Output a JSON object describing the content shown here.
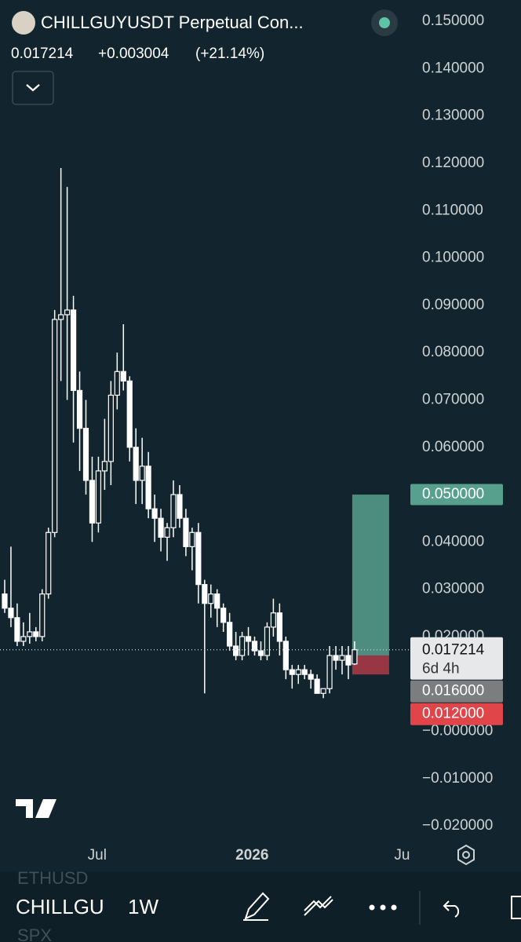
{
  "ui": {
    "symbol_title": "CHILLGUYUSDT Perpetual Con...",
    "last": "0.017214",
    "change": "+0.003004",
    "change_pct": "(+21.14%)",
    "toolbar": {
      "symbol_above": "ETHUSD",
      "symbol": "CHILLGU",
      "interval": "1W",
      "symbol_below": "SPX"
    }
  },
  "chart_data": {
    "type": "candlestick",
    "color_up": "#ffffff",
    "color_down": "#ffffff",
    "open": [
      0.029,
      0.026,
      0.024,
      0.019,
      0.02,
      0.021,
      0.02,
      0.029,
      0.042,
      0.087,
      0.088,
      0.089,
      0.072,
      0.064,
      0.053,
      0.044,
      0.055,
      0.057,
      0.071,
      0.076,
      0.074,
      0.06,
      0.053,
      0.056,
      0.047,
      0.045,
      0.041,
      0.043,
      0.05,
      0.045,
      0.039,
      0.042,
      0.031,
      0.027,
      0.029,
      0.026,
      0.023,
      0.018,
      0.016,
      0.02,
      0.019,
      0.017,
      0.016,
      0.022,
      0.025,
      0.019,
      0.013,
      0.012,
      0.013,
      0.012,
      0.011,
      0.008,
      0.009,
      0.016,
      0.015,
      0.016,
      0.014211
    ],
    "high": [
      0.032,
      0.039,
      0.027,
      0.023,
      0.025,
      0.022,
      0.03,
      0.043,
      0.089,
      0.119,
      0.115,
      0.092,
      0.076,
      0.07,
      0.058,
      0.058,
      0.066,
      0.074,
      0.08,
      0.086,
      0.075,
      0.064,
      0.062,
      0.059,
      0.05,
      0.047,
      0.044,
      0.053,
      0.052,
      0.047,
      0.043,
      0.044,
      0.032,
      0.031,
      0.03,
      0.027,
      0.025,
      0.021,
      0.021,
      0.022,
      0.02,
      0.019,
      0.023,
      0.028,
      0.027,
      0.02,
      0.014,
      0.014,
      0.014,
      0.013,
      0.012,
      0.009,
      0.018,
      0.018,
      0.018,
      0.018,
      0.019
    ],
    "low": [
      0.025,
      0.022,
      0.018,
      0.018,
      0.0185,
      0.019,
      0.019,
      0.028,
      0.041,
      0.074,
      0.07,
      0.061,
      0.055,
      0.05,
      0.04,
      0.042,
      0.051,
      0.052,
      0.068,
      0.072,
      0.057,
      0.048,
      0.048,
      0.045,
      0.04,
      0.038,
      0.036,
      0.041,
      0.043,
      0.037,
      0.034,
      0.027,
      0.008,
      0.024,
      0.022,
      0.021,
      0.017,
      0.015,
      0.015,
      0.016,
      0.016,
      0.015,
      0.015,
      0.02,
      0.016,
      0.011,
      0.009,
      0.01,
      0.011,
      0.009,
      0.008,
      0.007,
      0.008,
      0.013,
      0.012,
      0.011,
      0.014
    ],
    "close": [
      0.026,
      0.024,
      0.019,
      0.02,
      0.021,
      0.02,
      0.029,
      0.042,
      0.087,
      0.088,
      0.089,
      0.072,
      0.064,
      0.053,
      0.044,
      0.055,
      0.057,
      0.071,
      0.076,
      0.074,
      0.06,
      0.053,
      0.056,
      0.047,
      0.045,
      0.041,
      0.043,
      0.05,
      0.045,
      0.039,
      0.042,
      0.031,
      0.027,
      0.029,
      0.026,
      0.023,
      0.018,
      0.016,
      0.02,
      0.019,
      0.017,
      0.016,
      0.022,
      0.025,
      0.019,
      0.013,
      0.012,
      0.013,
      0.012,
      0.011,
      0.008,
      0.009,
      0.016,
      0.015,
      0.016,
      0.014,
      0.017214
    ],
    "xlim": [
      -0.75,
      64.8
    ],
    "xticks": [
      {
        "value": 14.8,
        "label": "Jul"
      },
      {
        "value": 39.6,
        "label": "2026"
      },
      {
        "value": 63.6,
        "label": "Ju"
      }
    ],
    "ylim": [
      -0.0238,
      0.1545
    ],
    "yticks": [
      {
        "value": 0.15,
        "label": "0.150000"
      },
      {
        "value": 0.14,
        "label": "0.140000"
      },
      {
        "value": 0.13,
        "label": "0.130000"
      },
      {
        "value": 0.12,
        "label": "0.120000"
      },
      {
        "value": 0.11,
        "label": "0.110000"
      },
      {
        "value": 0.1,
        "label": "0.100000"
      },
      {
        "value": 0.09,
        "label": "0.090000"
      },
      {
        "value": 0.08,
        "label": "0.080000"
      },
      {
        "value": 0.07,
        "label": "0.070000"
      },
      {
        "value": 0.06,
        "label": "0.060000"
      },
      {
        "value": 0.05,
        "label": "0.050000"
      },
      {
        "value": 0.04,
        "label": "0.040000"
      },
      {
        "value": 0.03,
        "label": "0.030000"
      },
      {
        "value": 0.02,
        "label": "0.020000"
      },
      {
        "value": 0,
        "label": "−0.000000"
      },
      {
        "value": -0.01,
        "label": "−0.010000"
      },
      {
        "value": -0.02,
        "label": "−0.020000"
      }
    ],
    "current_price": 0.017214,
    "countdown": "6d 4h",
    "position": {
      "target": {
        "value": 0.05,
        "label": "0.050000"
      },
      "entry": {
        "value": 0.016,
        "label": "0.016000"
      },
      "stop": {
        "value": 0.012,
        "label": "0.012000"
      },
      "profit_color": "#57a08e",
      "loss_color": "#b23a48"
    }
  }
}
